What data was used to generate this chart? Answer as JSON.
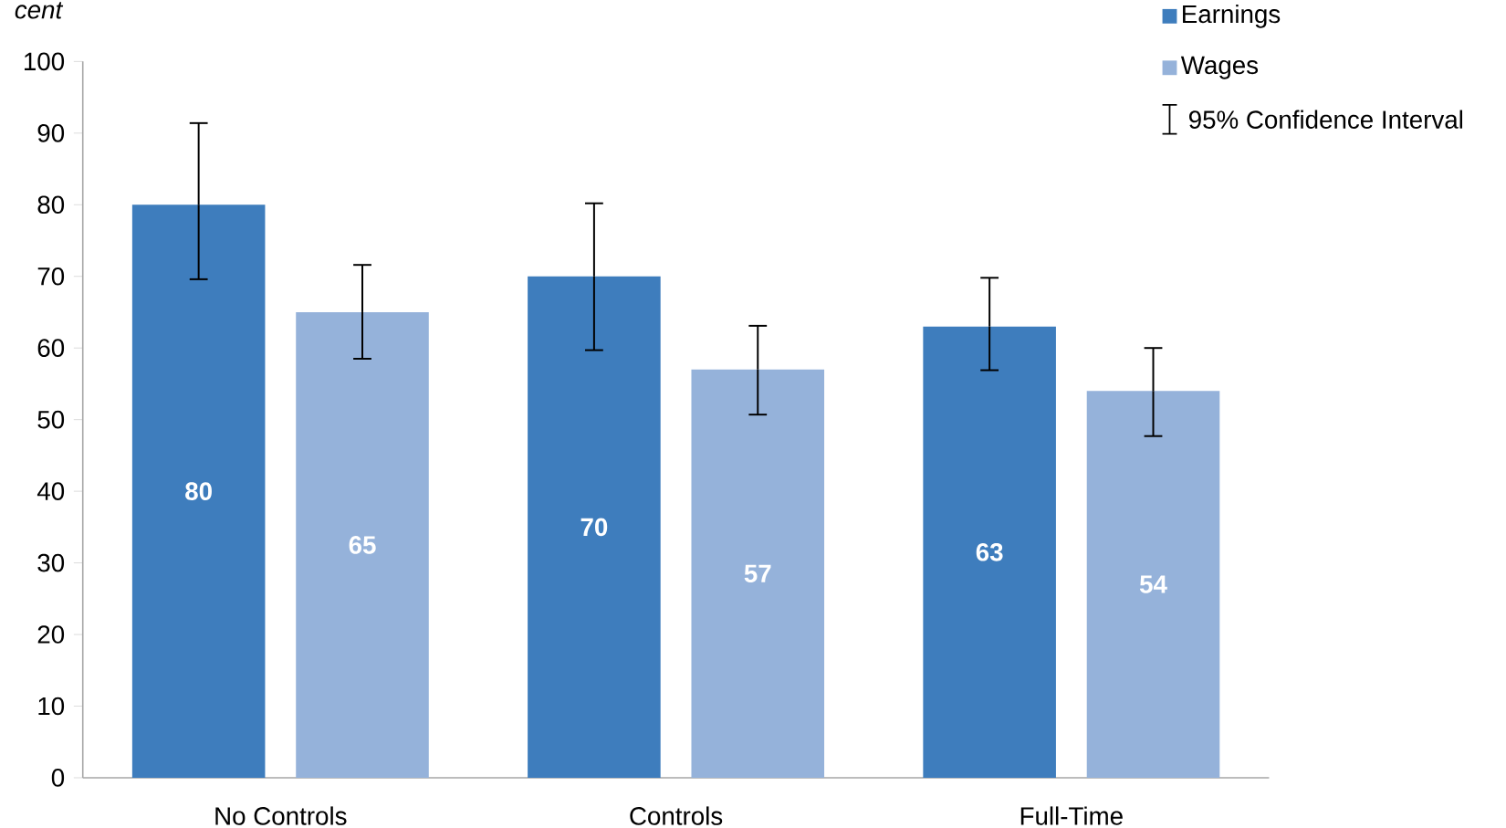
{
  "chart_data": {
    "type": "bar",
    "ylabel": "cent",
    "categories": [
      "No Controls",
      "Controls",
      "Full-Time"
    ],
    "series": [
      {
        "name": "Earnings",
        "color": "#3e7dbd",
        "values": [
          80,
          70,
          63
        ],
        "errors": [
          [
            69.6,
            91.4
          ],
          [
            59.7,
            80.2
          ],
          [
            56.9,
            69.8
          ]
        ]
      },
      {
        "name": "Wages",
        "color": "#95b2da",
        "values": [
          65,
          57,
          54
        ],
        "errors": [
          [
            58.5,
            71.6
          ],
          [
            50.7,
            63.1
          ],
          [
            47.7,
            60.0
          ]
        ]
      }
    ],
    "ylim": [
      0,
      100
    ],
    "yticks": [
      0,
      10,
      20,
      30,
      40,
      50,
      60,
      70,
      80,
      90,
      100
    ],
    "data_labels": true,
    "legend": "top right",
    "grid": false,
    "annotations": [
      "95% Confidence Interval"
    ]
  }
}
